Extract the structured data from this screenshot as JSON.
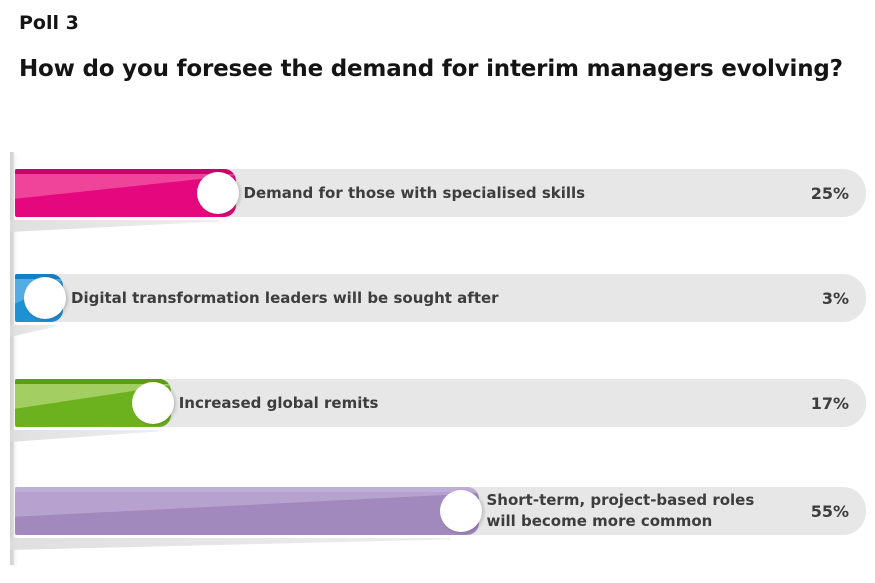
{
  "header": {
    "poll_label": "Poll 3",
    "question": "How do you foresee the demand for interim managers evolving?"
  },
  "chart_data": {
    "type": "bar",
    "orientation": "horizontal",
    "title": "How do you foresee the demand for interim managers evolving?",
    "unit": "percent",
    "value_axis_range": [
      0,
      100
    ],
    "grid": false,
    "legend": false,
    "categories": [
      "Demand for those with specialised skills",
      "Digital transformation leaders will be sought after",
      "Increased global remits",
      "Short-term, project-based roles will become more common"
    ],
    "values": [
      25,
      3,
      17,
      55
    ],
    "bars": [
      {
        "label": "Demand for those with specialised skills",
        "value": 25,
        "value_label": "25%",
        "color_main": "#E5077E",
        "color_edge": "#CB0169",
        "color_light": "#EF449A"
      },
      {
        "label": "Digital transformation leaders will be sought after",
        "value": 3,
        "value_label": "3%",
        "color_main": "#1E90D4",
        "color_edge": "#1480C2",
        "color_light": "#55ACE2"
      },
      {
        "label": "Increased global remits",
        "value": 17,
        "value_label": "17%",
        "color_main": "#6CB21E",
        "color_edge": "#5B9E13",
        "color_light": "#A2CE62"
      },
      {
        "label": "Short-term, project-based roles will become more common",
        "value": 55,
        "value_label": "55%",
        "color_main": "#A189BE",
        "color_edge": "#C0AEDA",
        "color_light": "#B7A1CF"
      }
    ],
    "track_color": "#E7E7E7",
    "label_color": "#3D3D3D",
    "axis_color": "#D6D6D6"
  }
}
